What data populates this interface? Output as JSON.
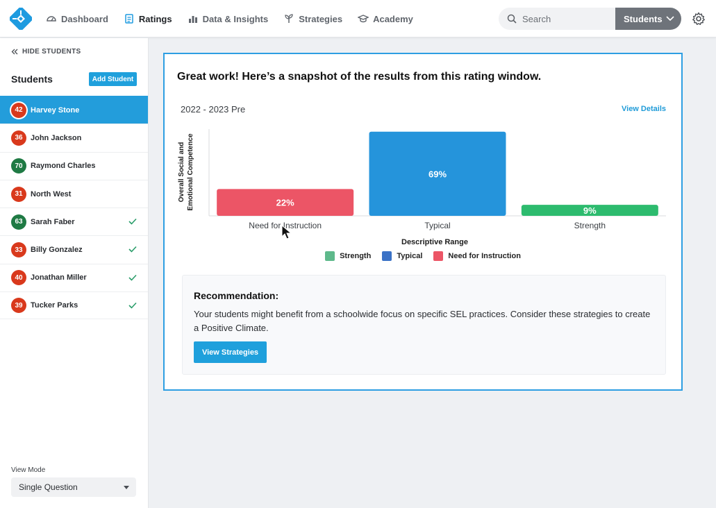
{
  "nav": {
    "items": [
      {
        "label": "Dashboard",
        "icon": "dashboard-gauge-icon",
        "active": false
      },
      {
        "label": "Ratings",
        "icon": "clipboard-list-icon",
        "active": true
      },
      {
        "label": "Data & Insights",
        "icon": "bar-chart-icon",
        "active": false
      },
      {
        "label": "Strategies",
        "icon": "sprout-icon",
        "active": false
      },
      {
        "label": "Academy",
        "icon": "graduation-cap-icon",
        "active": false
      }
    ]
  },
  "search": {
    "placeholder": "Search"
  },
  "students_dropdown": {
    "label": "Students"
  },
  "sidebar": {
    "hide_label": "HIDE STUDENTS",
    "title": "Students",
    "add_label": "Add Student",
    "students": [
      {
        "score": "42",
        "name": "Harvey Stone",
        "color": "red",
        "selected": true,
        "done": false
      },
      {
        "score": "36",
        "name": "John Jackson",
        "color": "red",
        "selected": false,
        "done": false
      },
      {
        "score": "70",
        "name": "Raymond Charles",
        "color": "green",
        "selected": false,
        "done": false
      },
      {
        "score": "31",
        "name": "North West",
        "color": "red",
        "selected": false,
        "done": false
      },
      {
        "score": "63",
        "name": "Sarah Faber",
        "color": "green",
        "selected": false,
        "done": true
      },
      {
        "score": "33",
        "name": "Billy Gonzalez",
        "color": "red",
        "selected": false,
        "done": true
      },
      {
        "score": "40",
        "name": "Jonathan Miller",
        "color": "red",
        "selected": false,
        "done": true
      },
      {
        "score": "39",
        "name": "Tucker Parks",
        "color": "red",
        "selected": false,
        "done": true
      }
    ],
    "view_mode_label": "View Mode",
    "view_mode_value": "Single Question"
  },
  "card": {
    "title": "Great work! Here’s a snapshot of the results from this rating window.",
    "period": "2022 - 2023 Pre",
    "view_details": "View Details"
  },
  "chart_data": {
    "type": "bar",
    "categories": [
      "Need for Instruction",
      "Typical",
      "Strength"
    ],
    "values": [
      22,
      69,
      9
    ],
    "data_labels": [
      "22%",
      "69%",
      "9%"
    ],
    "colors": [
      "#ec5566",
      "#2594db",
      "#2dbb6e"
    ],
    "xlabel": "Descriptive Range",
    "ylabel_lines": [
      "Overall Social and",
      "Emotional Competence"
    ],
    "ylim": [
      0,
      70
    ],
    "grid": false,
    "legend_position": "bottom-center",
    "legend": [
      {
        "label": "Strength",
        "color": "#5eb98b"
      },
      {
        "label": "Typical",
        "color": "#3b72c6"
      },
      {
        "label": "Need for Instruction",
        "color": "#ec5566"
      }
    ]
  },
  "recommendation": {
    "title": "Recommendation:",
    "text": "Your students might benefit from a schoolwide focus on specific SEL practices. Consider these strategies to create a Positive Climate.",
    "button": "View Strategies"
  },
  "colors": {
    "accent": "#1fa0dc",
    "selected_row": "#239ddb",
    "badge_red": "#d9391c",
    "badge_green": "#1f7a44",
    "check": "#2a9d6a"
  }
}
